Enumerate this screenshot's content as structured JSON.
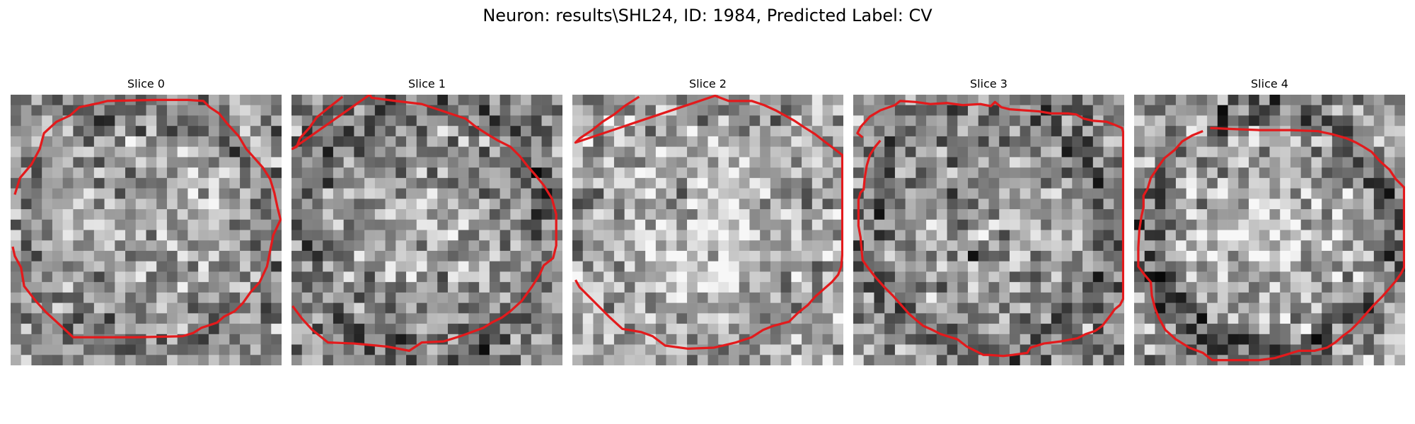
{
  "figure": {
    "title": "Neuron: results\\SHL24, ID: 1984, Predicted Label: CV"
  },
  "panels": [
    {
      "title": "Slice 0",
      "seed": 11,
      "contour": [
        [
          9.6,
          0.4
        ],
        [
          8.0,
          0.9
        ],
        [
          6.7,
          2.0
        ],
        [
          5.2,
          2.8
        ],
        [
          3.7,
          3.2
        ],
        [
          2.6,
          4.4
        ],
        [
          2.0,
          5.7
        ],
        [
          1.2,
          6.6
        ],
        [
          0.8,
          8.5
        ],
        [
          0.6,
          9.3
        ],
        [
          0.5,
          14.0
        ],
        [
          0.5,
          17.0
        ],
        [
          0.6,
          18.5
        ],
        [
          1.2,
          19.1
        ],
        [
          1.8,
          20.0
        ],
        [
          2.8,
          20.8
        ],
        [
          4.0,
          21.9
        ],
        [
          5.2,
          22.6
        ],
        [
          6.1,
          23.4
        ],
        [
          7.0,
          24.2
        ],
        [
          8.1,
          24.9
        ],
        [
          9.4,
          25.3
        ],
        [
          10.8,
          25.6
        ],
        [
          12.0,
          25.9
        ],
        [
          13.5,
          25.2
        ],
        [
          15.0,
          24.9
        ],
        [
          16.5,
          24.6
        ],
        [
          18.0,
          23.9
        ],
        [
          19.0,
          23.0
        ],
        [
          20.0,
          22.3
        ],
        [
          20.8,
          21.5
        ],
        [
          21.3,
          20.5
        ],
        [
          21.9,
          19.8
        ],
        [
          22.4,
          18.3
        ],
        [
          22.9,
          17.5
        ],
        [
          23.2,
          16.5
        ],
        [
          23.3,
          12.0
        ],
        [
          23.3,
          6.0
        ],
        [
          22.0,
          4.6
        ],
        [
          20.9,
          3.4
        ],
        [
          19.8,
          2.4
        ],
        [
          18.4,
          1.3
        ],
        [
          16.6,
          1.0
        ],
        [
          15.5,
          0.4
        ],
        [
          14.6,
          0.2
        ]
      ],
      "stats": {
        "mean": 0.57,
        "bright": 0.12,
        "edgeDark": 0.07,
        "spots": []
      }
    },
    {
      "title": "Slice 1",
      "seed": 23,
      "contour": [
        [
          0.2,
          4.9
        ],
        [
          1.3,
          3.5
        ],
        [
          2.2,
          2.4
        ],
        [
          3.2,
          1.7
        ],
        [
          4.2,
          0.8
        ],
        [
          5.0,
          0.5
        ],
        [
          5.2,
          0.1
        ],
        [
          0.0,
          7.5
        ],
        [
          0.3,
          7.7
        ],
        [
          0.6,
          10.0
        ],
        [
          0.9,
          12.5
        ],
        [
          1.4,
          14.0
        ],
        [
          1.9,
          15.5
        ],
        [
          2.3,
          16.7
        ],
        [
          3.1,
          17.7
        ],
        [
          3.8,
          18.8
        ],
        [
          4.4,
          19.8
        ],
        [
          5.0,
          21.0
        ],
        [
          5.9,
          21.9
        ],
        [
          6.8,
          22.6
        ],
        [
          7.6,
          23.3
        ],
        [
          8.7,
          24.2
        ],
        [
          10.0,
          25.0
        ],
        [
          11.5,
          25.4
        ],
        [
          13.3,
          25.4
        ],
        [
          14.5,
          25.4
        ],
        [
          15.7,
          25.1
        ],
        [
          16.4,
          24.2
        ],
        [
          17.3,
          23.8
        ],
        [
          18.4,
          23.1
        ],
        [
          19.8,
          22.1
        ],
        [
          20.8,
          21.0
        ],
        [
          21.4,
          20.2
        ],
        [
          21.9,
          19.2
        ],
        [
          22.4,
          18.4
        ],
        [
          22.8,
          17.3
        ],
        [
          23.2,
          16.2
        ],
        [
          23.7,
          14.6
        ],
        [
          23.8,
          12.5
        ],
        [
          24.6,
          11.3
        ],
        [
          24.2,
          9.2
        ],
        [
          23.9,
          6.0
        ],
        [
          23.8,
          3.5
        ],
        [
          22.6,
          2.0
        ],
        [
          21.5,
          1.0
        ],
        [
          20.3,
          0.1
        ]
      ],
      "stats": {
        "mean": 0.55,
        "bright": 0.1,
        "edgeDark": 0.14,
        "spots": []
      }
    },
    {
      "title": "Slice 2",
      "seed": 37,
      "contour": [
        [
          0.2,
          6.4
        ],
        [
          1.1,
          5.0
        ],
        [
          1.9,
          4.0
        ],
        [
          2.6,
          2.9
        ],
        [
          3.4,
          1.9
        ],
        [
          4.2,
          0.7
        ],
        [
          4.6,
          0.3
        ],
        [
          0.1,
          13.7
        ],
        [
          0.6,
          15.0
        ],
        [
          0.6,
          17.2
        ],
        [
          1.0,
          18.4
        ],
        [
          1.5,
          19.5
        ],
        [
          2.0,
          20.4
        ],
        [
          2.5,
          21.3
        ],
        [
          3.1,
          22.2
        ],
        [
          3.8,
          23.3
        ],
        [
          4.5,
          24.2
        ],
        [
          5.1,
          25.0
        ],
        [
          5.8,
          25.9
        ],
        [
          15.3,
          25.9
        ],
        [
          16.5,
          25.8
        ],
        [
          17.3,
          25.5
        ],
        [
          18.0,
          24.9
        ],
        [
          18.7,
          24.1
        ],
        [
          19.4,
          23.3
        ],
        [
          20.2,
          22.6
        ],
        [
          21.0,
          21.6
        ],
        [
          21.8,
          20.8
        ],
        [
          22.2,
          19.3
        ],
        [
          22.6,
          18.3
        ],
        [
          23.3,
          17.2
        ],
        [
          23.8,
          15.7
        ],
        [
          24.3,
          13.6
        ],
        [
          24.4,
          11.1
        ],
        [
          24.1,
          8.9
        ],
        [
          23.2,
          7.7
        ],
        [
          22.8,
          6.6
        ],
        [
          22.5,
          4.8
        ],
        [
          21.4,
          3.6
        ],
        [
          20.4,
          2.6
        ],
        [
          19.4,
          1.6
        ],
        [
          18.5,
          0.7
        ],
        [
          17.8,
          0.3
        ]
      ],
      "stats": {
        "mean": 0.66,
        "bright": 0.14,
        "edgeDark": 0.04,
        "spots": [
          [
            9.2,
            9.0,
            0.26,
            2.6
          ],
          [
            12.0,
            9.8,
            0.22,
            2.0
          ],
          [
            6.2,
            6.5,
            0.1,
            2.2
          ]
        ]
      }
    },
    {
      "title": "Slice 3",
      "seed": 51,
      "contour": [
        [
          4.1,
          0.9
        ],
        [
          3.7,
          0.4
        ],
        [
          3.1,
          0.7
        ],
        [
          2.1,
          1.6
        ],
        [
          1.5,
          2.6
        ],
        [
          1.0,
          4.0
        ],
        [
          0.6,
          4.5
        ],
        [
          0.7,
          6.0
        ],
        [
          0.9,
          7.4
        ],
        [
          0.8,
          9.0
        ],
        [
          1.0,
          10.5
        ],
        [
          0.9,
          12.2
        ],
        [
          1.1,
          13.2
        ],
        [
          0.7,
          13.6
        ],
        [
          1.2,
          14.2
        ],
        [
          1.4,
          15.0
        ],
        [
          1.5,
          16.4
        ],
        [
          1.6,
          17.8
        ],
        [
          1.8,
          19.0
        ],
        [
          1.8,
          20.6
        ],
        [
          1.9,
          21.4
        ],
        [
          2.3,
          22.1
        ],
        [
          2.5,
          23.0
        ],
        [
          2.6,
          24.3
        ],
        [
          2.9,
          25.1
        ],
        [
          3.2,
          25.8
        ],
        [
          3.6,
          25.9
        ],
        [
          19.6,
          25.9
        ],
        [
          20.2,
          25.6
        ],
        [
          20.6,
          25.1
        ],
        [
          21.3,
          24.6
        ],
        [
          22.2,
          23.9
        ],
        [
          22.7,
          23.2
        ],
        [
          23.0,
          22.3
        ],
        [
          23.4,
          21.5
        ],
        [
          23.7,
          19.9
        ],
        [
          23.9,
          18.3
        ],
        [
          24.3,
          17.0
        ],
        [
          24.8,
          16.7
        ],
        [
          25.0,
          15.3
        ],
        [
          25.1,
          14.4
        ],
        [
          25.0,
          13.0
        ],
        [
          25.0,
          12.5
        ],
        [
          24.2,
          10.9
        ],
        [
          23.5,
          10.0
        ],
        [
          23.0,
          8.4
        ],
        [
          22.6,
          7.6
        ],
        [
          22.2,
          6.7
        ],
        [
          21.7,
          6.1
        ],
        [
          21.0,
          5.3
        ],
        [
          20.2,
          4.6
        ],
        [
          19.3,
          3.8
        ],
        [
          18.5,
          3.0
        ],
        [
          17.5,
          2.1
        ],
        [
          16.6,
          1.4
        ],
        [
          15.9,
          0.9
        ],
        [
          14.9,
          0.8
        ],
        [
          13.7,
          0.7
        ],
        [
          12.6,
          0.5
        ],
        [
          11.3,
          0.5
        ],
        [
          10.1,
          0.5
        ],
        [
          9.4,
          0.7
        ],
        [
          9.1,
          1.0
        ],
        [
          8.0,
          1.1
        ],
        [
          6.8,
          1.3
        ],
        [
          5.8,
          1.6
        ],
        [
          5.0,
          2.1
        ],
        [
          4.4,
          2.6
        ]
      ],
      "stats": {
        "mean": 0.55,
        "bright": 0.1,
        "edgeDark": 0.12,
        "spots": [
          [
            8.4,
            9.6,
            0.2,
            3.0
          ],
          [
            14.5,
            10.6,
            0.3,
            2.2
          ],
          [
            9.0,
            13.0,
            0.14,
            2.6
          ]
        ]
      }
    },
    {
      "title": "Slice 4",
      "seed": 67,
      "contour": [
        [
          3.2,
          7.3
        ],
        [
          3.3,
          9.5
        ],
        [
          3.4,
          12.0
        ],
        [
          3.4,
          15.0
        ],
        [
          3.5,
          17.6
        ],
        [
          3.8,
          19.0
        ],
        [
          4.2,
          20.4
        ],
        [
          4.6,
          21.3
        ],
        [
          5.0,
          22.0
        ],
        [
          5.5,
          22.8
        ],
        [
          6.4,
          23.6
        ],
        [
          7.2,
          24.5
        ],
        [
          8.1,
          25.1
        ],
        [
          8.9,
          25.9
        ],
        [
          9.7,
          25.9
        ],
        [
          16.6,
          25.9
        ],
        [
          17.2,
          25.6
        ],
        [
          17.9,
          25.1
        ],
        [
          18.6,
          24.5
        ],
        [
          19.4,
          23.8
        ],
        [
          20.2,
          23.0
        ],
        [
          21.0,
          22.3
        ],
        [
          21.9,
          21.5
        ],
        [
          22.6,
          20.8
        ],
        [
          23.2,
          20.0
        ],
        [
          23.8,
          19.3
        ],
        [
          24.3,
          18.5
        ],
        [
          24.6,
          17.3
        ],
        [
          24.6,
          15.8
        ],
        [
          25.0,
          14.5
        ],
        [
          25.3,
          13.5
        ],
        [
          25.5,
          12.0
        ],
        [
          25.5,
          7.5
        ],
        [
          24.8,
          6.6
        ],
        [
          24.3,
          5.3
        ],
        [
          23.5,
          4.0
        ],
        [
          22.6,
          3.0
        ],
        [
          21.5,
          2.4
        ],
        [
          20.5,
          2.0
        ],
        [
          19.3,
          1.7
        ],
        [
          18.0,
          1.6
        ],
        [
          17.3,
          1.0
        ],
        [
          16.5,
          0.4
        ],
        [
          14.7,
          0.4
        ],
        [
          13.0,
          0.5
        ],
        [
          11.7,
          0.7
        ],
        [
          10.8,
          0.9
        ],
        [
          9.7,
          0.9
        ],
        [
          9.0,
          1.3
        ],
        [
          8.0,
          1.6
        ],
        [
          7.1,
          2.2
        ],
        [
          6.1,
          2.9
        ],
        [
          5.3,
          3.9
        ],
        [
          4.5,
          4.6
        ],
        [
          3.9,
          5.6
        ],
        [
          3.5,
          6.6
        ]
      ],
      "stats": {
        "mean": 0.62,
        "bright": 0.13,
        "edgeDark": 0.22,
        "spots": [
          [
            2.5,
            5.5,
            -0.25,
            2.5
          ],
          [
            4.0,
            22.5,
            -0.2,
            3.0
          ]
        ]
      }
    }
  ],
  "colors": {
    "contour": "#e31a1c",
    "background": "#ffffff"
  }
}
